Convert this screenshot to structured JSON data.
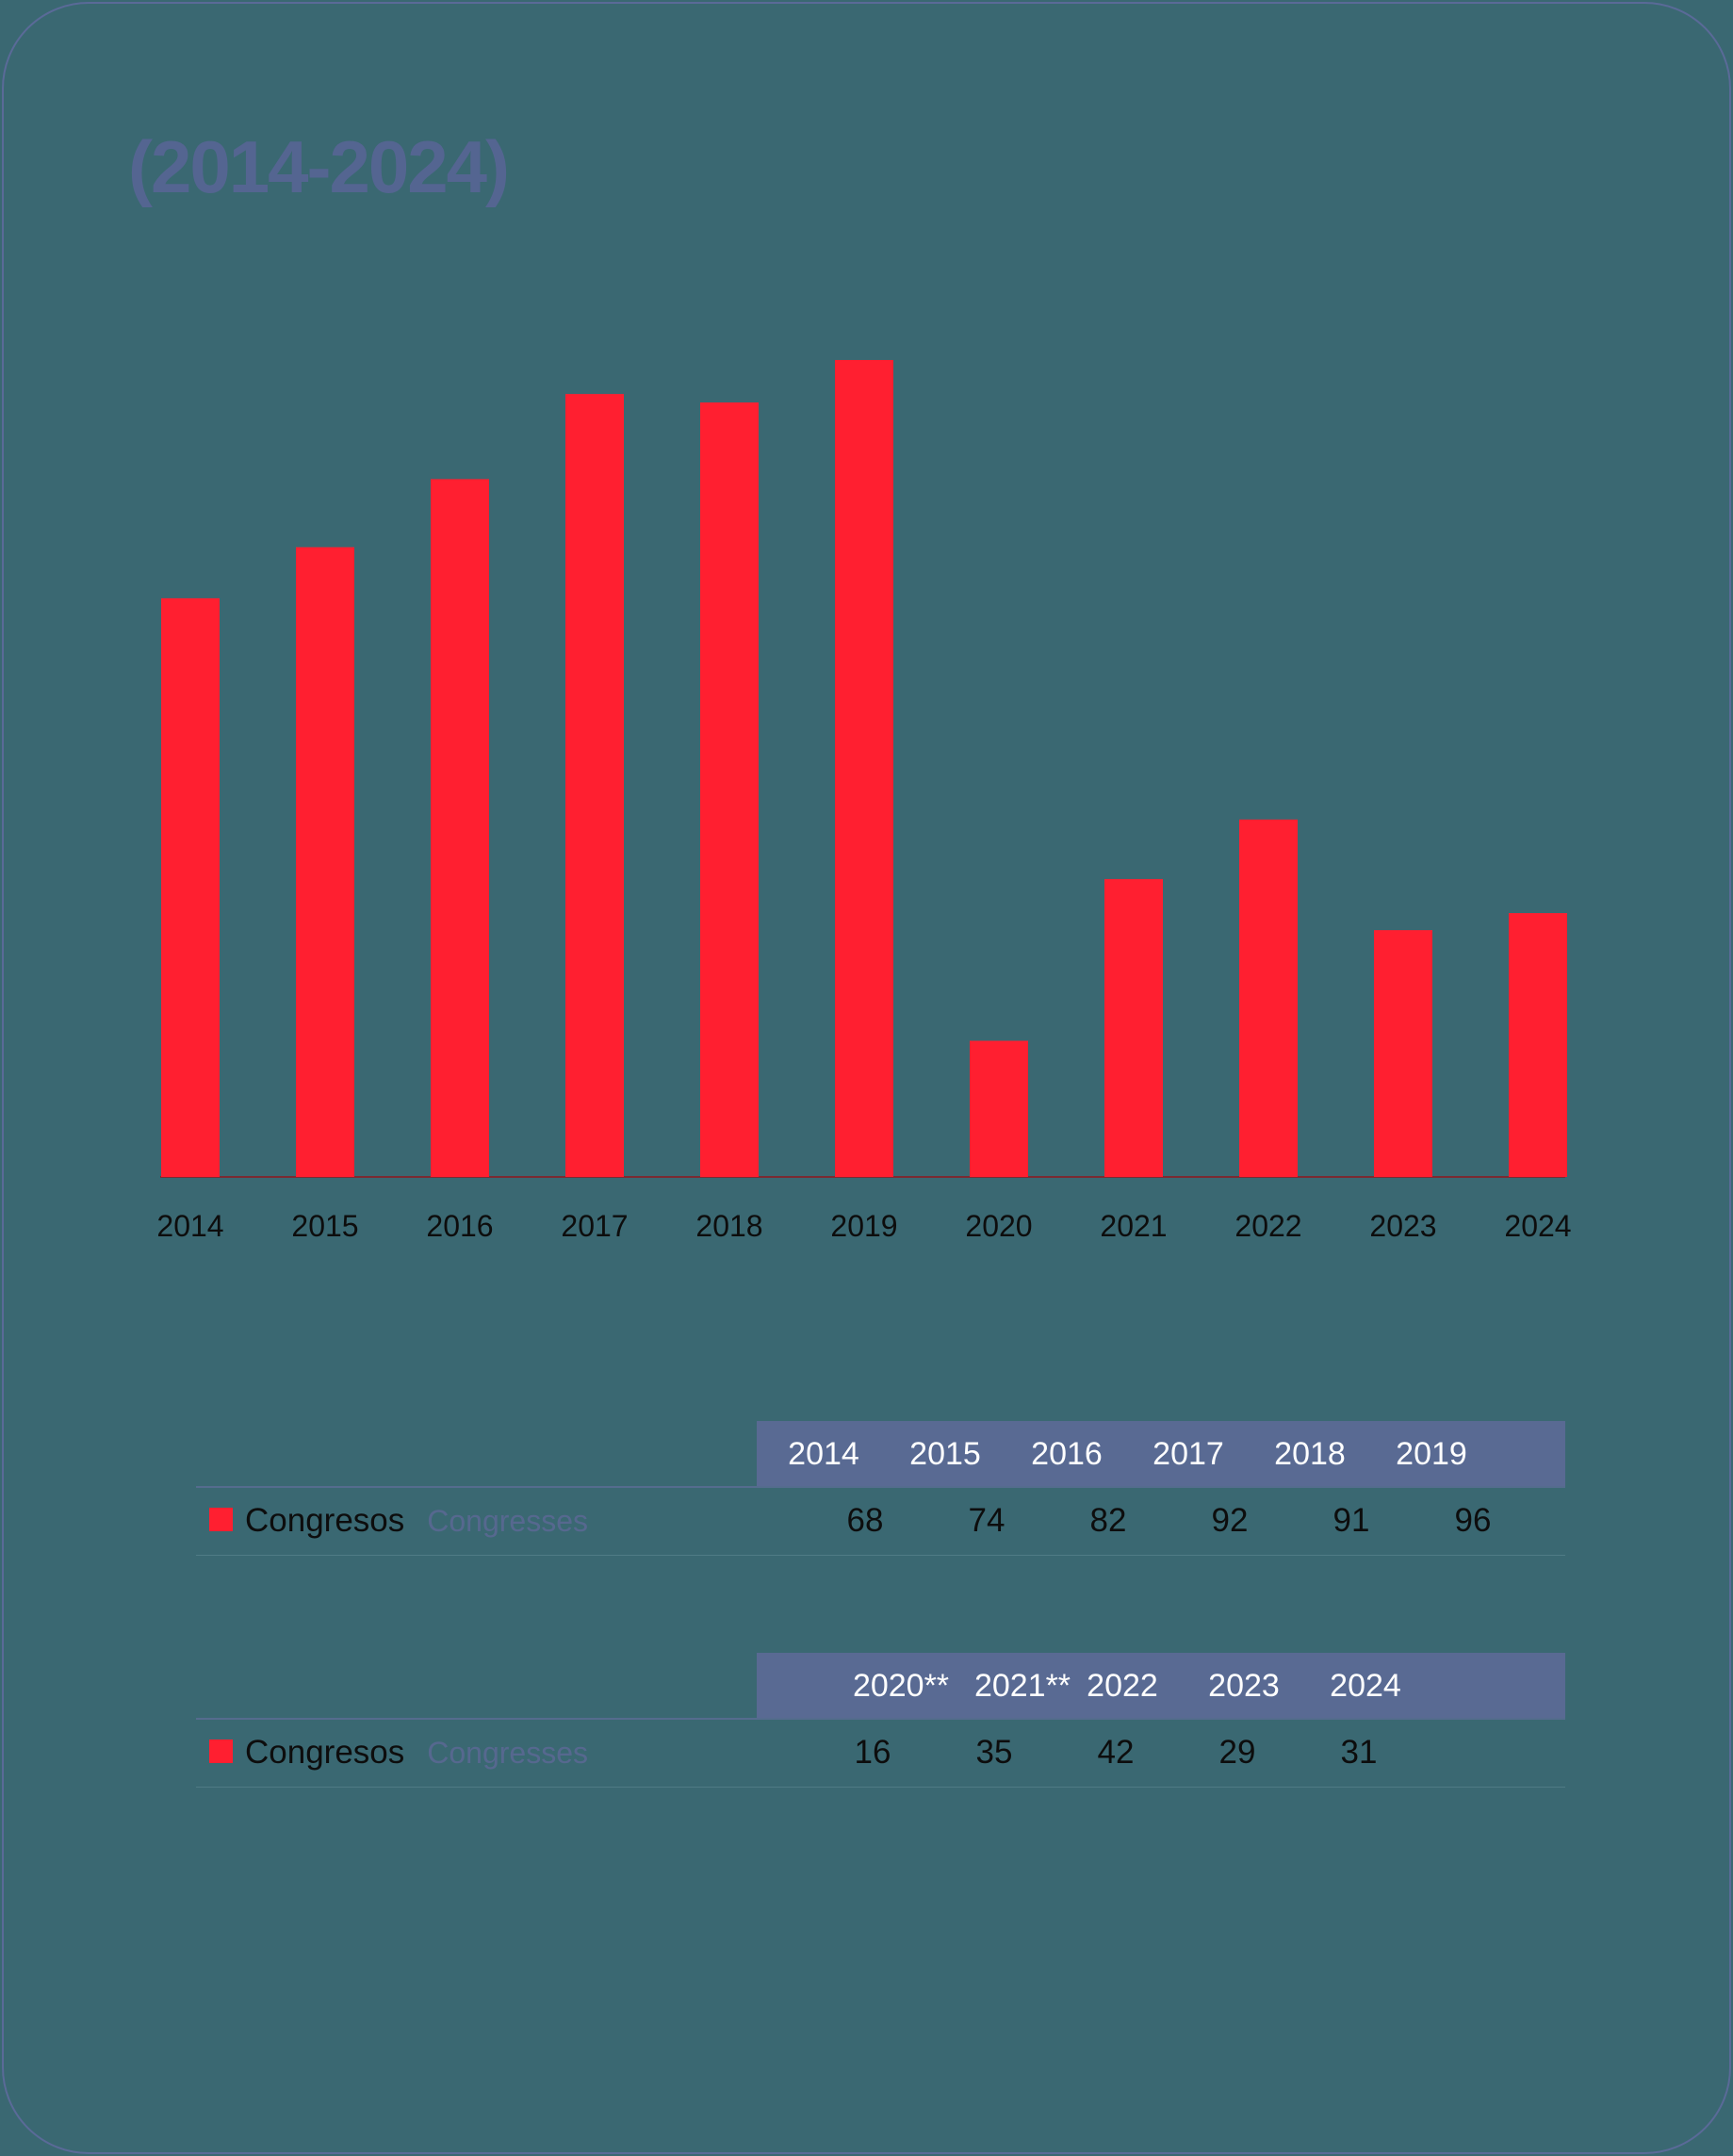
{
  "title": "(2014-2024)",
  "chart_data": {
    "type": "bar",
    "title": "(2014-2024)",
    "categories": [
      "2014",
      "2015",
      "2016",
      "2017",
      "2018",
      "2019",
      "2020",
      "2021",
      "2022",
      "2023",
      "2024"
    ],
    "series": [
      {
        "name": "Congresos",
        "values": [
          68,
          74,
          82,
          92,
          91,
          96,
          16,
          35,
          42,
          29,
          31
        ]
      }
    ],
    "xlabel": "",
    "ylabel": "",
    "ylim": [
      0,
      96
    ],
    "grid": false,
    "bar_color": "#ff1f30",
    "axis_color": "#7a2a32"
  },
  "table1": {
    "years": [
      "2014",
      "2015",
      "2016",
      "2017",
      "2018",
      "2019"
    ],
    "label_es": "Congresos",
    "label_en": "Congresses",
    "values": [
      "68",
      "74",
      "82",
      "92",
      "91",
      "96"
    ]
  },
  "table2": {
    "years": [
      "2020**",
      "2021**",
      "2022",
      "2023",
      "2024"
    ],
    "label_es": "Congresos",
    "label_en": "Congresses",
    "values": [
      "16",
      "35",
      "42",
      "29",
      "31"
    ]
  },
  "colors": {
    "background": "#3a6872",
    "accent": "#ff1f30",
    "header": "#596a93",
    "title": "#546591"
  }
}
